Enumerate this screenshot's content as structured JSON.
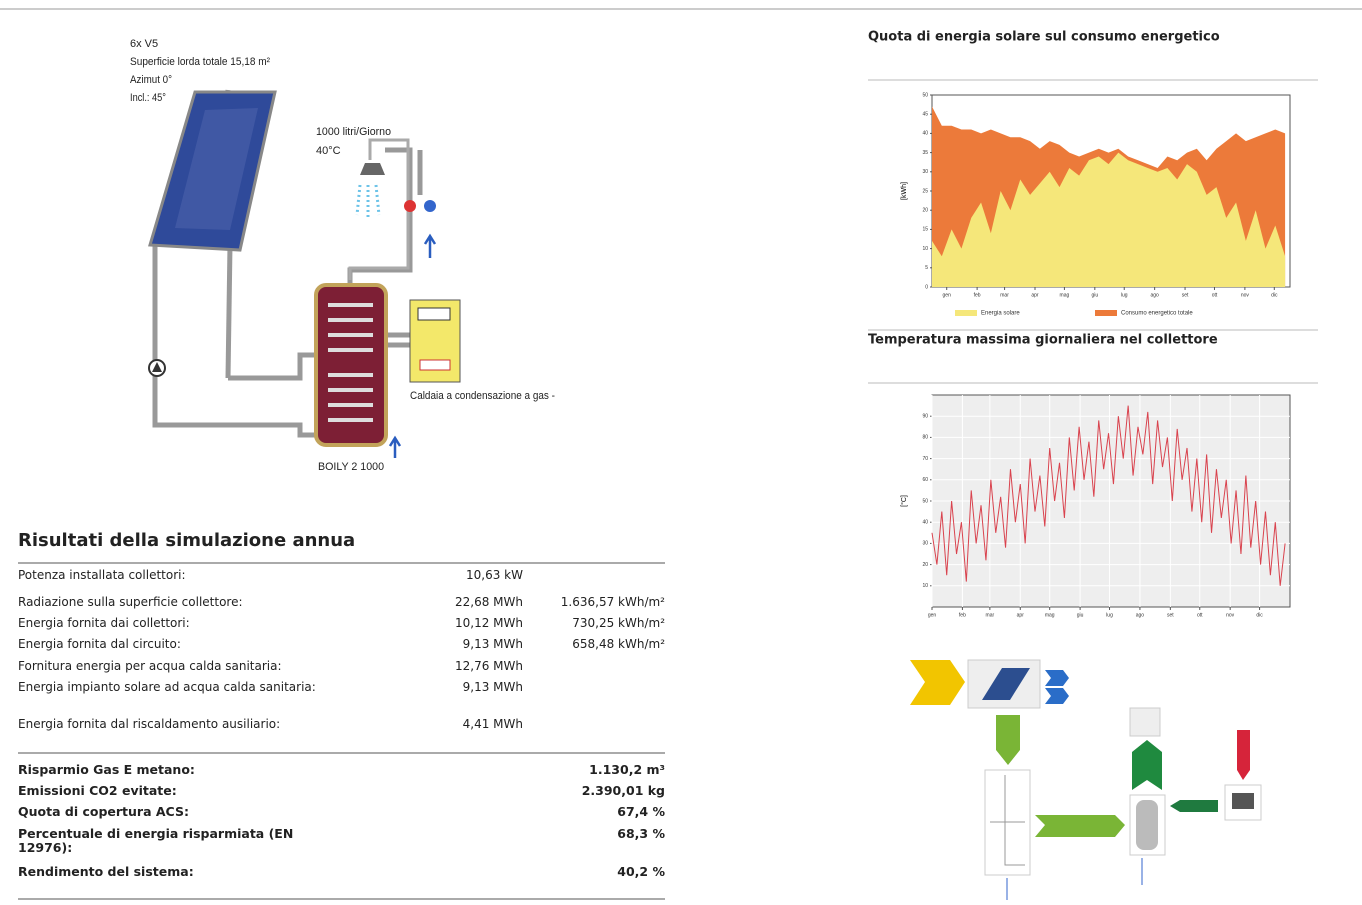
{
  "diagram": {
    "collector": [
      "6x V5",
      "Superficie lorda totale 15,18 m²",
      "Azimut 0°",
      "Incl.: 45°"
    ],
    "consumption": [
      "1000 litri/Giorno",
      "40°C"
    ],
    "boiler": "Caldaia a condensazione a gas -",
    "tank": "BOILY 2 1000"
  },
  "results": {
    "title": "Risultati della simulazione annua",
    "rows": [
      {
        "label": "Potenza installata collettori:",
        "values": [
          "10,63 kW"
        ]
      },
      {
        "label": "Radiazione sulla superficie collettore:",
        "values": [
          "22,68 MWh",
          "1.636,57 kWh/m²"
        ]
      },
      {
        "label": "Energia fornita dai collettori:",
        "values": [
          "10,12 MWh",
          "730,25 kWh/m²"
        ]
      },
      {
        "label": "Energia fornita dal circuito:",
        "values": [
          "9,13 MWh",
          "658,48 kWh/m²"
        ]
      },
      {
        "label": "Fornitura energia per acqua calda sanitaria:",
        "values": [
          "12,76 MWh"
        ]
      },
      {
        "label": "Energia impianto solare ad acqua calda sanitaria:",
        "values": [
          "9,13 MWh"
        ]
      },
      {
        "label": "Energia fornita dal riscaldamento ausiliario:",
        "values": [
          "4,41 MWh"
        ]
      }
    ],
    "summary": [
      {
        "label": "Risparmio Gas E metano:",
        "value": "1.130,2 m³"
      },
      {
        "label": "Emissioni CO2 evitate:",
        "value": "2.390,01 kg"
      },
      {
        "label": "Quota di copertura ACS:",
        "value": "67,4 %"
      },
      {
        "label": "Percentuale di energia risparmiata (EN 12976):",
        "value": "68,3 %"
      },
      {
        "label": "Rendimento del sistema:",
        "value": "40,2 %"
      }
    ]
  },
  "chart_data": [
    {
      "type": "area",
      "title": "Quota di energia solare sul consumo energetico",
      "y_label": "[kWh]",
      "x": [
        0,
        10,
        20,
        30,
        40,
        50,
        60,
        70,
        80,
        90,
        100,
        110,
        120,
        130,
        140,
        150,
        160,
        170,
        180,
        190,
        200,
        210,
        220,
        230,
        240,
        250,
        260,
        270,
        280,
        290,
        300,
        310,
        320,
        330,
        340,
        350,
        360
      ],
      "xlim": [
        0,
        365
      ],
      "xticks": [
        {
          "value": 15,
          "label": "gen"
        },
        {
          "value": 46,
          "label": "feb"
        },
        {
          "value": 74,
          "label": "mar"
        },
        {
          "value": 105,
          "label": "apr"
        },
        {
          "value": 135,
          "label": "mag"
        },
        {
          "value": 166,
          "label": "giu"
        },
        {
          "value": 196,
          "label": "lug"
        },
        {
          "value": 227,
          "label": "ago"
        },
        {
          "value": 258,
          "label": "set"
        },
        {
          "value": 288,
          "label": "ott"
        },
        {
          "value": 319,
          "label": "nov"
        },
        {
          "value": 349,
          "label": "dic"
        }
      ],
      "ylim": [
        0,
        50
      ],
      "yticks": [
        0,
        5,
        10,
        15,
        20,
        25,
        30,
        35,
        40,
        45,
        50
      ],
      "series": [
        {
          "name": "Energia solare",
          "color": "#f5e77a",
          "values": [
            12,
            8,
            15,
            10,
            18,
            22,
            14,
            25,
            20,
            28,
            24,
            27,
            30,
            26,
            31,
            29,
            33,
            34,
            32,
            35,
            33,
            32,
            31,
            30,
            31,
            28,
            32,
            30,
            24,
            26,
            18,
            22,
            12,
            20,
            10,
            16,
            8
          ]
        },
        {
          "name": "Consumo energetico totale",
          "color": "#ec7a3a",
          "values": [
            47,
            42,
            42,
            41,
            41,
            40,
            41,
            40,
            39,
            39,
            38,
            36,
            38,
            37,
            35,
            34,
            35,
            36,
            35,
            36,
            34,
            33,
            32,
            31,
            34,
            33,
            35,
            36,
            33,
            36,
            38,
            40,
            38,
            39,
            40,
            41,
            40
          ]
        }
      ]
    },
    {
      "type": "line",
      "title": "Temperatura massima giornaliera nel collettore",
      "y_label": "[°C]",
      "grid": true,
      "x": [
        0,
        5,
        10,
        15,
        20,
        25,
        30,
        35,
        40,
        45,
        50,
        55,
        60,
        65,
        70,
        75,
        80,
        85,
        90,
        95,
        100,
        105,
        110,
        115,
        120,
        125,
        130,
        135,
        140,
        145,
        150,
        155,
        160,
        165,
        170,
        175,
        180,
        185,
        190,
        195,
        200,
        205,
        210,
        215,
        220,
        225,
        230,
        235,
        240,
        245,
        250,
        255,
        260,
        265,
        270,
        275,
        280,
        285,
        290,
        295,
        300,
        305,
        310,
        315,
        320,
        325,
        330,
        335,
        340,
        345,
        350,
        355,
        360
      ],
      "xlim": [
        0,
        365
      ],
      "xticks": [
        {
          "value": 0,
          "label": "gen"
        },
        {
          "value": 31,
          "label": "feb"
        },
        {
          "value": 59,
          "label": "mar"
        },
        {
          "value": 90,
          "label": "apr"
        },
        {
          "value": 120,
          "label": "mag"
        },
        {
          "value": 151,
          "label": "giu"
        },
        {
          "value": 181,
          "label": "lug"
        },
        {
          "value": 212,
          "label": "ago"
        },
        {
          "value": 243,
          "label": "set"
        },
        {
          "value": 273,
          "label": "ott"
        },
        {
          "value": 304,
          "label": "nov"
        },
        {
          "value": 334,
          "label": "dic"
        }
      ],
      "ylim": [
        0,
        100
      ],
      "yticks": [
        10,
        20,
        30,
        40,
        50,
        60,
        70,
        80,
        90
      ],
      "series": [
        {
          "name": "Temperatura",
          "color": "#d9434e",
          "values": [
            35,
            20,
            45,
            15,
            50,
            25,
            40,
            12,
            55,
            30,
            48,
            22,
            60,
            35,
            52,
            28,
            65,
            40,
            58,
            30,
            70,
            45,
            62,
            38,
            75,
            50,
            68,
            42,
            80,
            55,
            85,
            60,
            78,
            52,
            88,
            65,
            82,
            58,
            90,
            70,
            95,
            62,
            85,
            72,
            92,
            58,
            88,
            66,
            80,
            50,
            84,
            60,
            75,
            45,
            70,
            40,
            72,
            35,
            65,
            42,
            60,
            30,
            55,
            25,
            62,
            28,
            50,
            20,
            45,
            15,
            40,
            10,
            30
          ]
        }
      ]
    }
  ]
}
